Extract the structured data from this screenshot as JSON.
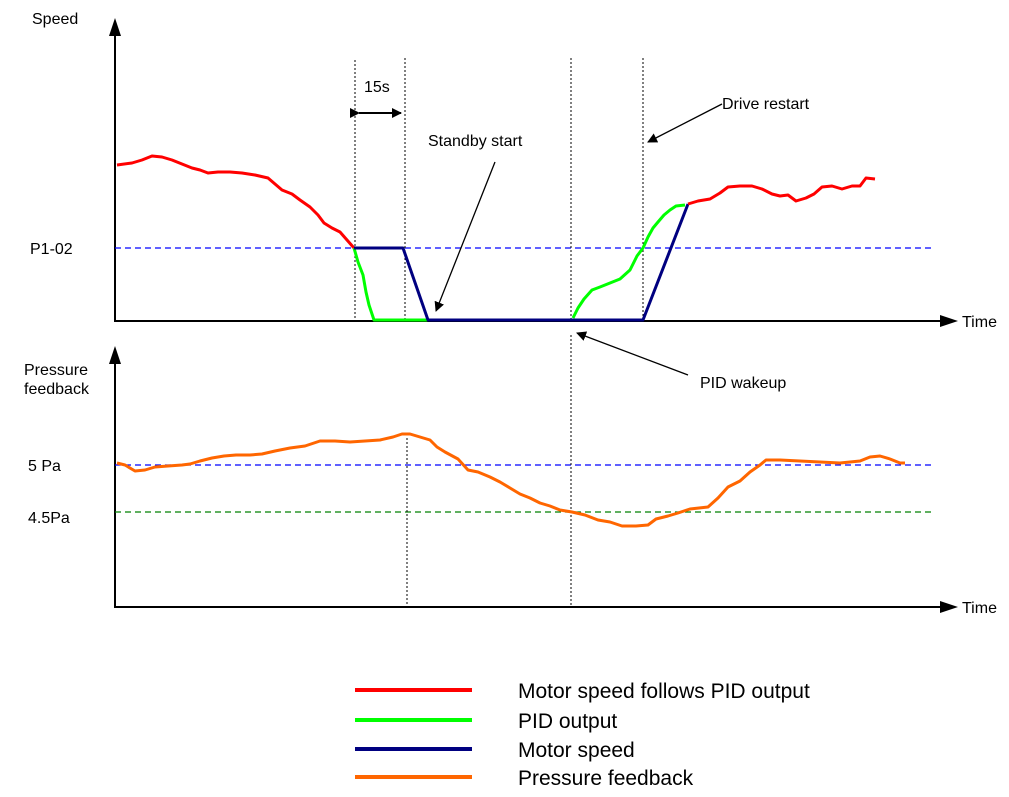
{
  "chart_data": [
    {
      "type": "line",
      "ylabel": "Speed",
      "xlabel": "Time",
      "reference_lines": [
        {
          "label": "P1-02",
          "color": "#0000ff",
          "style": "dashed"
        }
      ],
      "annotations": {
        "interval": "15s",
        "standby_start": "Standby start",
        "drive_restart": "Drive restart",
        "pid_wakeup": "PID wakeup"
      },
      "series": [
        {
          "name": "Motor speed follows PID output",
          "color": "#ff0000"
        },
        {
          "name": "PID output",
          "color": "#00ff00"
        },
        {
          "name": "Motor speed",
          "color": "#000080"
        }
      ]
    },
    {
      "type": "line",
      "ylabel": "Pressure feedback",
      "xlabel": "Time",
      "reference_lines": [
        {
          "label": "5 Pa",
          "color": "#0000ff",
          "style": "dashed"
        },
        {
          "label": "4.5Pa",
          "color": "#008000",
          "style": "dashed"
        }
      ],
      "series": [
        {
          "name": "Pressure feedback",
          "color": "#ff6600"
        }
      ]
    }
  ],
  "legend": [
    {
      "label": "Motor speed follows PID output",
      "color": "#ff0000"
    },
    {
      "label": "PID output",
      "color": "#00ff00"
    },
    {
      "label": "Motor speed",
      "color": "#000080"
    },
    {
      "label": "Pressure feedback",
      "color": "#ff6600"
    }
  ]
}
